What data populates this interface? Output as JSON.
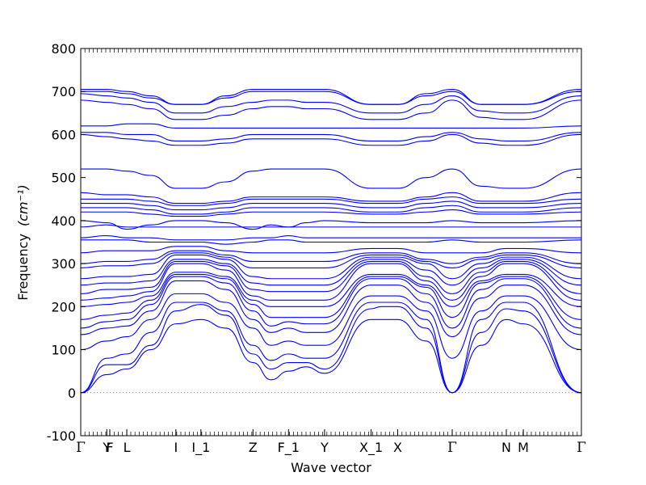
{
  "chart_data": {
    "type": "line",
    "title": "",
    "xlabel": "Wave vector",
    "ylabel": "Frequency",
    "ylabel_unit": "(cm⁻¹)",
    "ylim": [
      -100,
      800
    ],
    "yticks": [
      -100,
      0,
      100,
      200,
      300,
      400,
      500,
      600,
      700,
      800
    ],
    "xlim": [
      0,
      1
    ],
    "high_symmetry_points": [
      {
        "label": "Γ",
        "x": 0.0
      },
      {
        "label": "Y",
        "x": 0.052
      },
      {
        "label": "F",
        "x": 0.058
      },
      {
        "label": "L",
        "x": 0.092
      },
      {
        "label": "I",
        "x": 0.19
      },
      {
        "label": "I_1",
        "x": 0.24
      },
      {
        "label": "Z",
        "x": 0.344
      },
      {
        "label": "F_1",
        "x": 0.415
      },
      {
        "label": "Y",
        "x": 0.487
      },
      {
        "label": "X_1",
        "x": 0.58
      },
      {
        "label": "X",
        "x": 0.633
      },
      {
        "label": "Γ",
        "x": 0.742
      },
      {
        "label": "N",
        "x": 0.85
      },
      {
        "label": "M",
        "x": 0.884
      },
      {
        "label": "Γ",
        "x": 1.0
      }
    ],
    "zero_line": {
      "y": 0,
      "style": "dotted"
    },
    "line_color": "#0000ff",
    "series": [
      {
        "values": [
          0,
          42,
          55,
          100,
          160,
          170,
          150,
          70,
          30,
          50,
          60,
          45,
          170,
          170,
          170,
          120,
          0,
          110,
          170,
          160,
          0
        ]
      },
      {
        "values": [
          0,
          65,
          65,
          110,
          190,
          205,
          180,
          90,
          55,
          70,
          70,
          55,
          195,
          200,
          200,
          150,
          0,
          140,
          195,
          190,
          0
        ]
      },
      {
        "values": [
          0,
          80,
          90,
          140,
          210,
          210,
          190,
          110,
          75,
          90,
          80,
          80,
          210,
          210,
          210,
          170,
          0,
          170,
          210,
          210,
          0
        ]
      },
      {
        "values": [
          100,
          120,
          130,
          170,
          230,
          230,
          210,
          150,
          110,
          120,
          110,
          110,
          225,
          225,
          225,
          190,
          80,
          190,
          225,
          225,
          100
        ]
      },
      {
        "values": [
          135,
          150,
          155,
          190,
          260,
          260,
          240,
          170,
          140,
          150,
          140,
          140,
          250,
          250,
          250,
          210,
          130,
          220,
          250,
          250,
          135
        ]
      },
      {
        "values": [
          150,
          165,
          170,
          205,
          270,
          270,
          255,
          190,
          155,
          165,
          160,
          160,
          265,
          265,
          265,
          230,
          150,
          240,
          265,
          265,
          150
        ]
      },
      {
        "values": [
          170,
          180,
          185,
          215,
          275,
          275,
          265,
          205,
          175,
          175,
          175,
          175,
          270,
          270,
          270,
          245,
          175,
          255,
          270,
          270,
          170
        ]
      },
      {
        "values": [
          200,
          205,
          210,
          225,
          280,
          280,
          270,
          215,
          200,
          200,
          200,
          200,
          275,
          275,
          275,
          250,
          200,
          260,
          275,
          275,
          200
        ]
      },
      {
        "values": [
          215,
          220,
          225,
          235,
          300,
          300,
          285,
          225,
          215,
          215,
          215,
          215,
          300,
          300,
          300,
          260,
          215,
          270,
          300,
          300,
          215
        ]
      },
      {
        "values": [
          230,
          240,
          240,
          245,
          305,
          305,
          295,
          240,
          235,
          235,
          235,
          235,
          305,
          305,
          305,
          270,
          230,
          280,
          305,
          305,
          230
        ]
      },
      {
        "values": [
          250,
          255,
          255,
          260,
          310,
          310,
          300,
          255,
          250,
          250,
          250,
          250,
          310,
          310,
          310,
          285,
          250,
          290,
          310,
          310,
          250
        ]
      },
      {
        "values": [
          265,
          270,
          270,
          275,
          320,
          320,
          310,
          270,
          265,
          265,
          265,
          265,
          315,
          315,
          315,
          300,
          265,
          300,
          315,
          315,
          265
        ]
      },
      {
        "values": [
          290,
          295,
          295,
          300,
          325,
          325,
          315,
          290,
          290,
          290,
          290,
          290,
          320,
          320,
          320,
          305,
          290,
          310,
          320,
          320,
          290
        ]
      },
      {
        "values": [
          300,
          305,
          305,
          310,
          330,
          330,
          320,
          305,
          305,
          305,
          305,
          305,
          325,
          325,
          325,
          310,
          300,
          315,
          325,
          325,
          300
        ]
      },
      {
        "values": [
          325,
          330,
          330,
          330,
          340,
          340,
          330,
          325,
          325,
          325,
          325,
          325,
          335,
          335,
          335,
          325,
          325,
          325,
          335,
          335,
          325
        ]
      },
      {
        "values": [
          355,
          355,
          355,
          350,
          350,
          350,
          345,
          350,
          355,
          355,
          350,
          350,
          350,
          350,
          350,
          350,
          355,
          350,
          350,
          350,
          355
        ]
      },
      {
        "values": [
          360,
          365,
          360,
          360,
          355,
          355,
          355,
          360,
          360,
          365,
          360,
          360,
          360,
          360,
          360,
          360,
          360,
          360,
          360,
          360,
          360
        ]
      },
      {
        "values": [
          385,
          390,
          385,
          385,
          385,
          385,
          385,
          385,
          385,
          385,
          385,
          385,
          385,
          385,
          385,
          385,
          385,
          385,
          385,
          385,
          385
        ]
      },
      {
        "values": [
          400,
          395,
          380,
          390,
          400,
          400,
          395,
          380,
          390,
          385,
          395,
          400,
          395,
          395,
          395,
          395,
          400,
          395,
          395,
          395,
          400
        ]
      },
      {
        "values": [
          420,
          420,
          420,
          415,
          410,
          410,
          415,
          420,
          420,
          420,
          420,
          420,
          415,
          415,
          415,
          420,
          425,
          415,
          415,
          415,
          420
        ]
      },
      {
        "values": [
          430,
          430,
          430,
          425,
          415,
          415,
          420,
          430,
          430,
          430,
          430,
          430,
          420,
          420,
          420,
          430,
          435,
          420,
          420,
          420,
          430
        ]
      },
      {
        "values": [
          440,
          440,
          440,
          435,
          425,
          425,
          430,
          440,
          440,
          440,
          440,
          440,
          430,
          430,
          430,
          440,
          445,
          430,
          430,
          430,
          440
        ]
      },
      {
        "values": [
          450,
          450,
          450,
          445,
          435,
          435,
          440,
          450,
          450,
          450,
          450,
          450,
          440,
          440,
          440,
          450,
          455,
          440,
          440,
          440,
          450
        ]
      },
      {
        "values": [
          465,
          460,
          460,
          455,
          440,
          440,
          445,
          455,
          455,
          455,
          455,
          455,
          445,
          445,
          445,
          455,
          465,
          445,
          445,
          445,
          465
        ]
      },
      {
        "values": [
          520,
          520,
          515,
          505,
          475,
          475,
          490,
          515,
          520,
          520,
          520,
          520,
          475,
          475,
          475,
          500,
          520,
          480,
          475,
          475,
          520
        ]
      },
      {
        "values": [
          600,
          595,
          590,
          585,
          575,
          575,
          580,
          590,
          590,
          590,
          590,
          590,
          575,
          575,
          575,
          585,
          600,
          580,
          575,
          575,
          600
        ]
      },
      {
        "values": [
          605,
          605,
          600,
          600,
          585,
          585,
          590,
          600,
          600,
          600,
          600,
          600,
          585,
          585,
          585,
          595,
          605,
          590,
          585,
          585,
          605
        ]
      },
      {
        "values": [
          620,
          620,
          625,
          625,
          615,
          615,
          615,
          615,
          615,
          615,
          615,
          615,
          615,
          615,
          615,
          615,
          615,
          615,
          615,
          615,
          620
        ]
      },
      {
        "values": [
          680,
          675,
          670,
          660,
          635,
          635,
          645,
          660,
          665,
          665,
          660,
          660,
          635,
          635,
          635,
          650,
          680,
          640,
          635,
          635,
          680
        ]
      },
      {
        "values": [
          695,
          690,
          685,
          675,
          650,
          650,
          665,
          675,
          680,
          680,
          675,
          675,
          650,
          650,
          650,
          670,
          690,
          655,
          650,
          650,
          690
        ]
      },
      {
        "values": [
          700,
          700,
          695,
          685,
          670,
          670,
          685,
          700,
          700,
          700,
          700,
          700,
          670,
          670,
          670,
          690,
          700,
          670,
          670,
          670,
          700
        ]
      },
      {
        "values": [
          705,
          705,
          700,
          690,
          670,
          670,
          690,
          705,
          705,
          705,
          705,
          705,
          670,
          670,
          670,
          695,
          705,
          670,
          670,
          670,
          705
        ]
      }
    ],
    "x": [
      0.0,
      0.052,
      0.092,
      0.14,
      0.19,
      0.24,
      0.29,
      0.344,
      0.38,
      0.415,
      0.45,
      0.487,
      0.58,
      0.6,
      0.633,
      0.69,
      0.742,
      0.8,
      0.85,
      0.884,
      1.0
    ],
    "grid": false
  }
}
